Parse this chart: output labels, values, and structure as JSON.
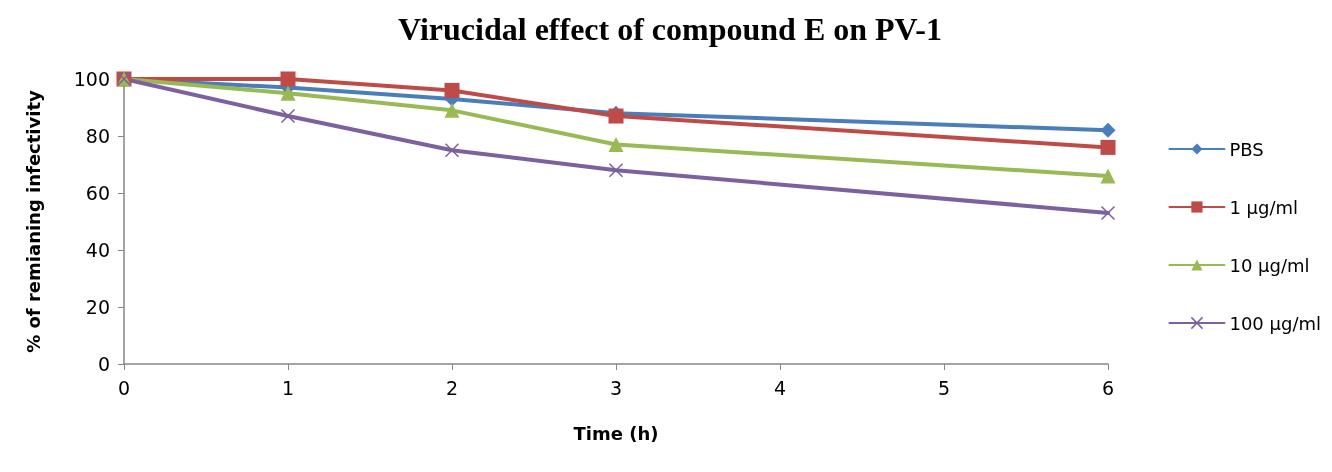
{
  "chart_data": {
    "type": "line",
    "title": "Virucidal effect of compound E on PV-1",
    "xlabel": "Time (h)",
    "ylabel": "% of remianing infectivity",
    "x": [
      0,
      1,
      2,
      3,
      6
    ],
    "xlim": [
      0,
      6
    ],
    "xticks": [
      0,
      1,
      2,
      3,
      4,
      5,
      6
    ],
    "ylim": [
      0,
      100
    ],
    "yticks": [
      0,
      20,
      40,
      60,
      80,
      100
    ],
    "grid": false,
    "legend": "right",
    "line_style": "solid",
    "series": [
      {
        "name": "PBS",
        "color": "#4a7ebb",
        "marker": "diamond",
        "values": [
          100,
          97,
          93,
          88,
          82
        ]
      },
      {
        "name": "1 µg/ml",
        "color": "#be4b48",
        "marker": "square",
        "values": [
          100,
          100,
          96,
          87,
          76
        ]
      },
      {
        "name": "10 µg/ml",
        "color": "#98b954",
        "marker": "triangle",
        "values": [
          100,
          95,
          89,
          77,
          66
        ]
      },
      {
        "name": "100 µg/ml",
        "color": "#7d60a0",
        "marker": "cross",
        "values": [
          100,
          87,
          75,
          68,
          53
        ]
      }
    ]
  }
}
